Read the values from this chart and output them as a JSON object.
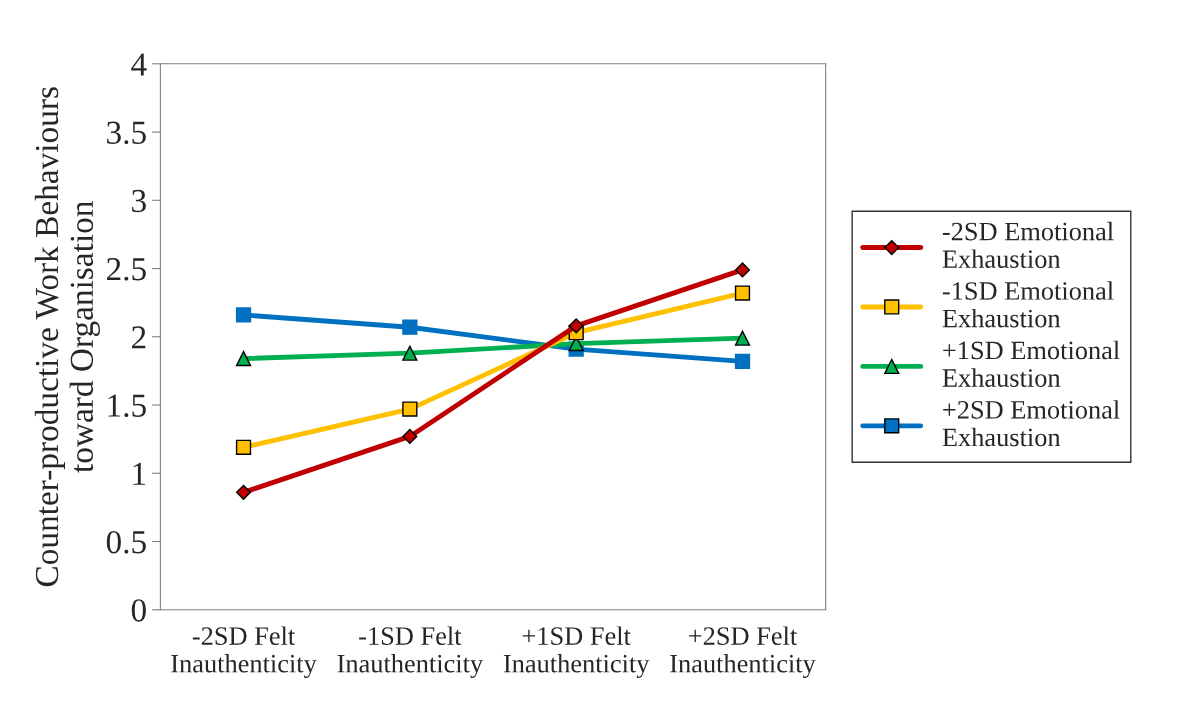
{
  "chart_data": {
    "type": "line",
    "ylabel": "Counter-productive Work Behaviours\ntoward Organisation",
    "categories": [
      "-2SD Felt\nInauthenticity",
      "-1SD Felt\nInauthenticity",
      "+1SD Felt\nInauthenticity",
      "+2SD Felt\nInauthenticity"
    ],
    "series": [
      {
        "name": "-2SD Emotional\nExhaustion",
        "color": "#c00000",
        "marker": "diamond",
        "values": [
          0.86,
          1.27,
          2.08,
          2.49
        ]
      },
      {
        "name": "-1SD Emotional\nExhaustion",
        "color": "#ffc000",
        "marker": "square",
        "values": [
          1.19,
          1.47,
          2.03,
          2.32
        ]
      },
      {
        "name": "+1SD Emotional\nExhaustion",
        "color": "#00b050",
        "marker": "triangle",
        "values": [
          1.84,
          1.88,
          1.95,
          1.99
        ]
      },
      {
        "name": "+2SD Emotional\nExhaustion",
        "color": "#0070c0",
        "marker": "square",
        "values": [
          2.16,
          2.07,
          1.91,
          1.82
        ]
      }
    ],
    "ylim": [
      0,
      4
    ],
    "yticks": [
      0,
      0.5,
      1,
      1.5,
      2,
      2.5,
      3,
      3.5,
      4
    ],
    "grid": false,
    "legend": "right",
    "line_style": "solid"
  }
}
